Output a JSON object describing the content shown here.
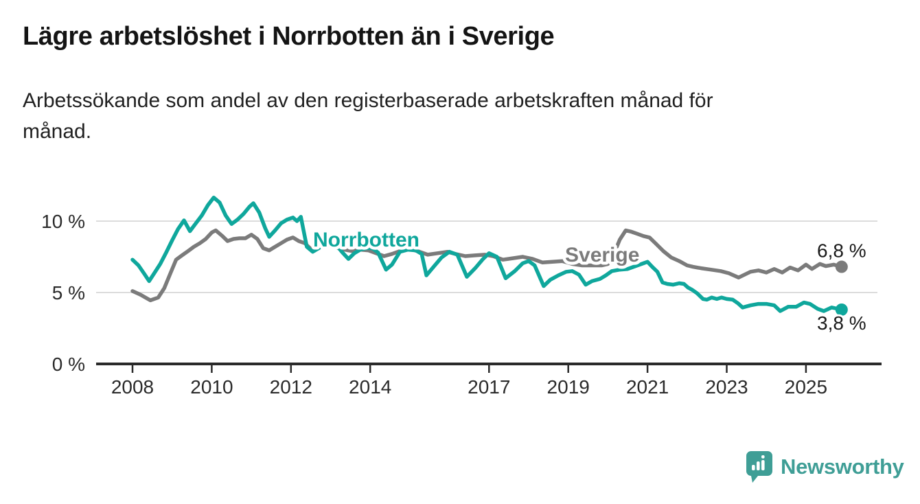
{
  "header": {
    "title": "Lägre arbetslöshet i Norrbotten än i Sverige",
    "subtitle_line1": "Arbetssökande som andel av den registerbaserade arbetskraften månad för",
    "subtitle_line2": "månad."
  },
  "chart_data": {
    "type": "line",
    "grid": true,
    "x_axis": {
      "tick_years": [
        2008,
        2010,
        2012,
        2014,
        2017,
        2019,
        2021,
        2023,
        2025
      ],
      "range": [
        2008,
        2025.9
      ]
    },
    "y_axis": {
      "unit": "%",
      "range": [
        0,
        12.5
      ],
      "ticks": [
        {
          "value": 0,
          "label": "0 %"
        },
        {
          "value": 5,
          "label": "5 %"
        },
        {
          "value": 10,
          "label": "10 %"
        }
      ]
    },
    "series": [
      {
        "name": "Sverige",
        "color": "#7b7b7b",
        "end_label": "6,8 %",
        "end_value": 6.8,
        "points": [
          [
            2008.0,
            5.1
          ],
          [
            2008.2,
            4.85
          ],
          [
            2008.45,
            4.45
          ],
          [
            2008.65,
            4.65
          ],
          [
            2008.8,
            5.3
          ],
          [
            2008.95,
            6.3
          ],
          [
            2009.1,
            7.3
          ],
          [
            2009.25,
            7.6
          ],
          [
            2009.4,
            7.9
          ],
          [
            2009.55,
            8.2
          ],
          [
            2009.7,
            8.45
          ],
          [
            2009.85,
            8.75
          ],
          [
            2010.0,
            9.2
          ],
          [
            2010.1,
            9.35
          ],
          [
            2010.25,
            9.0
          ],
          [
            2010.4,
            8.6
          ],
          [
            2010.55,
            8.75
          ],
          [
            2010.7,
            8.8
          ],
          [
            2010.85,
            8.8
          ],
          [
            2011.0,
            9.05
          ],
          [
            2011.15,
            8.75
          ],
          [
            2011.3,
            8.1
          ],
          [
            2011.45,
            7.95
          ],
          [
            2011.6,
            8.2
          ],
          [
            2011.75,
            8.45
          ],
          [
            2011.9,
            8.7
          ],
          [
            2012.05,
            8.85
          ],
          [
            2012.2,
            8.6
          ],
          [
            2012.35,
            8.45
          ],
          [
            2012.5,
            8.05
          ],
          [
            2012.65,
            8.1
          ],
          [
            2012.8,
            8.25
          ],
          [
            2012.95,
            8.3
          ],
          [
            2013.15,
            8.15
          ],
          [
            2013.35,
            8.0
          ],
          [
            2013.55,
            7.9
          ],
          [
            2013.75,
            8.0
          ],
          [
            2013.95,
            7.95
          ],
          [
            2014.15,
            7.75
          ],
          [
            2014.35,
            7.55
          ],
          [
            2014.55,
            7.7
          ],
          [
            2014.8,
            7.95
          ],
          [
            2015.0,
            8.05
          ],
          [
            2015.2,
            7.9
          ],
          [
            2015.45,
            7.65
          ],
          [
            2015.7,
            7.75
          ],
          [
            2015.95,
            7.85
          ],
          [
            2016.15,
            7.7
          ],
          [
            2016.4,
            7.55
          ],
          [
            2016.65,
            7.6
          ],
          [
            2016.9,
            7.65
          ],
          [
            2017.1,
            7.55
          ],
          [
            2017.35,
            7.3
          ],
          [
            2017.6,
            7.4
          ],
          [
            2017.85,
            7.5
          ],
          [
            2018.1,
            7.35
          ],
          [
            2018.35,
            7.1
          ],
          [
            2018.6,
            7.15
          ],
          [
            2018.85,
            7.2
          ],
          [
            2019.1,
            7.0
          ],
          [
            2019.35,
            6.9
          ],
          [
            2019.6,
            6.9
          ],
          [
            2019.85,
            6.9
          ],
          [
            2020.0,
            7.0
          ],
          [
            2020.15,
            7.7
          ],
          [
            2020.3,
            8.7
          ],
          [
            2020.45,
            9.35
          ],
          [
            2020.6,
            9.25
          ],
          [
            2020.75,
            9.1
          ],
          [
            2020.9,
            8.95
          ],
          [
            2021.05,
            8.85
          ],
          [
            2021.2,
            8.45
          ],
          [
            2021.4,
            7.9
          ],
          [
            2021.6,
            7.45
          ],
          [
            2021.8,
            7.2
          ],
          [
            2022.0,
            6.9
          ],
          [
            2022.15,
            6.8
          ],
          [
            2022.35,
            6.7
          ],
          [
            2022.6,
            6.6
          ],
          [
            2022.85,
            6.5
          ],
          [
            2023.05,
            6.35
          ],
          [
            2023.3,
            6.05
          ],
          [
            2023.6,
            6.45
          ],
          [
            2023.8,
            6.55
          ],
          [
            2024.0,
            6.4
          ],
          [
            2024.2,
            6.65
          ],
          [
            2024.4,
            6.4
          ],
          [
            2024.6,
            6.75
          ],
          [
            2024.8,
            6.55
          ],
          [
            2025.0,
            6.95
          ],
          [
            2025.15,
            6.65
          ],
          [
            2025.35,
            7.0
          ],
          [
            2025.5,
            6.85
          ],
          [
            2025.7,
            6.95
          ],
          [
            2025.9,
            6.8
          ]
        ]
      },
      {
        "name": "Norrbotten",
        "color": "#0fa79c",
        "end_label": "3,8 %",
        "end_value": 3.8,
        "points": [
          [
            2008.0,
            7.3
          ],
          [
            2008.15,
            6.9
          ],
          [
            2008.3,
            6.3
          ],
          [
            2008.42,
            5.8
          ],
          [
            2008.55,
            6.35
          ],
          [
            2008.7,
            7.0
          ],
          [
            2008.85,
            7.8
          ],
          [
            2009.0,
            8.65
          ],
          [
            2009.15,
            9.45
          ],
          [
            2009.3,
            10.05
          ],
          [
            2009.45,
            9.3
          ],
          [
            2009.6,
            9.85
          ],
          [
            2009.75,
            10.4
          ],
          [
            2009.9,
            11.1
          ],
          [
            2010.05,
            11.65
          ],
          [
            2010.2,
            11.3
          ],
          [
            2010.35,
            10.4
          ],
          [
            2010.5,
            9.8
          ],
          [
            2010.65,
            10.1
          ],
          [
            2010.8,
            10.5
          ],
          [
            2010.95,
            11.0
          ],
          [
            2011.05,
            11.25
          ],
          [
            2011.2,
            10.6
          ],
          [
            2011.35,
            9.5
          ],
          [
            2011.45,
            8.9
          ],
          [
            2011.6,
            9.35
          ],
          [
            2011.75,
            9.85
          ],
          [
            2011.9,
            10.1
          ],
          [
            2012.05,
            10.25
          ],
          [
            2012.15,
            10.0
          ],
          [
            2012.25,
            10.3
          ],
          [
            2012.4,
            8.2
          ],
          [
            2012.55,
            7.85
          ],
          [
            2012.7,
            8.1
          ],
          [
            2012.85,
            8.4
          ],
          [
            2013.0,
            8.6
          ],
          [
            2013.15,
            8.3
          ],
          [
            2013.3,
            7.8
          ],
          [
            2013.45,
            7.35
          ],
          [
            2013.6,
            7.75
          ],
          [
            2013.75,
            8.0
          ],
          [
            2013.9,
            8.1
          ],
          [
            2014.05,
            8.1
          ],
          [
            2014.2,
            7.8
          ],
          [
            2014.4,
            6.6
          ],
          [
            2014.55,
            6.95
          ],
          [
            2014.75,
            7.85
          ],
          [
            2014.95,
            8.0
          ],
          [
            2015.15,
            7.95
          ],
          [
            2015.3,
            7.7
          ],
          [
            2015.42,
            6.2
          ],
          [
            2015.6,
            6.8
          ],
          [
            2015.8,
            7.45
          ],
          [
            2016.0,
            7.85
          ],
          [
            2016.2,
            7.65
          ],
          [
            2016.44,
            6.1
          ],
          [
            2016.65,
            6.7
          ],
          [
            2016.85,
            7.35
          ],
          [
            2017.0,
            7.75
          ],
          [
            2017.2,
            7.5
          ],
          [
            2017.42,
            6.0
          ],
          [
            2017.65,
            6.5
          ],
          [
            2017.85,
            7.05
          ],
          [
            2018.0,
            7.2
          ],
          [
            2018.15,
            6.9
          ],
          [
            2018.38,
            5.45
          ],
          [
            2018.55,
            5.9
          ],
          [
            2018.75,
            6.2
          ],
          [
            2018.95,
            6.45
          ],
          [
            2019.1,
            6.5
          ],
          [
            2019.27,
            6.25
          ],
          [
            2019.44,
            5.55
          ],
          [
            2019.6,
            5.8
          ],
          [
            2019.8,
            5.95
          ],
          [
            2019.95,
            6.2
          ],
          [
            2020.1,
            6.5
          ],
          [
            2020.3,
            6.6
          ],
          [
            2020.5,
            6.65
          ],
          [
            2020.7,
            6.85
          ],
          [
            2020.9,
            7.05
          ],
          [
            2021.0,
            7.15
          ],
          [
            2021.12,
            6.8
          ],
          [
            2021.25,
            6.45
          ],
          [
            2021.38,
            5.7
          ],
          [
            2021.5,
            5.6
          ],
          [
            2021.65,
            5.55
          ],
          [
            2021.8,
            5.65
          ],
          [
            2021.92,
            5.6
          ],
          [
            2022.02,
            5.35
          ],
          [
            2022.12,
            5.2
          ],
          [
            2022.25,
            4.95
          ],
          [
            2022.4,
            4.55
          ],
          [
            2022.5,
            4.5
          ],
          [
            2022.62,
            4.65
          ],
          [
            2022.75,
            4.55
          ],
          [
            2022.87,
            4.65
          ],
          [
            2023.0,
            4.55
          ],
          [
            2023.15,
            4.5
          ],
          [
            2023.28,
            4.25
          ],
          [
            2023.4,
            3.95
          ],
          [
            2023.6,
            4.1
          ],
          [
            2023.8,
            4.2
          ],
          [
            2024.0,
            4.2
          ],
          [
            2024.2,
            4.1
          ],
          [
            2024.35,
            3.7
          ],
          [
            2024.55,
            4.0
          ],
          [
            2024.75,
            4.0
          ],
          [
            2024.95,
            4.3
          ],
          [
            2025.1,
            4.2
          ],
          [
            2025.3,
            3.85
          ],
          [
            2025.45,
            3.7
          ],
          [
            2025.65,
            3.95
          ],
          [
            2025.9,
            3.8
          ]
        ]
      }
    ]
  },
  "footer": {
    "brand_name": "Newsworthy",
    "brand_color": "#3f9e96"
  },
  "colors": {
    "norrbotten_line": "#0fa79c",
    "sverige_line": "#7b7b7b",
    "axis": "#2a2a2a",
    "gridline": "#dcdcdc",
    "text": "#1f1f1f"
  }
}
